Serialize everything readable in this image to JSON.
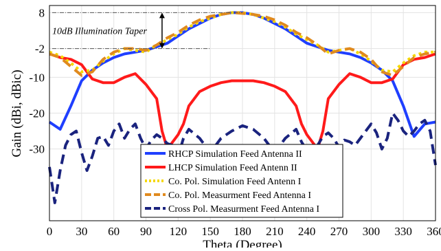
{
  "chart_data": {
    "type": "line",
    "xlabel": "Theta (Degree)",
    "ylabel": "Gain (dBi, dBic)",
    "xlim": [
      0,
      360
    ],
    "ylim": [
      -50,
      10
    ],
    "xticks": [
      0,
      30,
      60,
      90,
      120,
      150,
      180,
      210,
      240,
      270,
      300,
      330,
      360
    ],
    "yticks": [
      8,
      -2,
      -10,
      -20,
      -30
    ],
    "grid": true,
    "legend_position": "bottom-center",
    "annotation": {
      "text": "10dB Illumination Taper",
      "x_theta": 105,
      "y_top": 8,
      "y_bottom": -2
    },
    "series": [
      {
        "name": "RHCP Simulation Feed Antenna II",
        "color": "#1f3fff",
        "style": "solid",
        "x": [
          0,
          10,
          20,
          30,
          40,
          50,
          60,
          70,
          80,
          90,
          100,
          110,
          120,
          130,
          140,
          150,
          160,
          170,
          180,
          190,
          200,
          210,
          220,
          230,
          240,
          250,
          260,
          270,
          280,
          290,
          300,
          310,
          320,
          330,
          340,
          350,
          360
        ],
        "y": [
          -22.5,
          -24.5,
          -18,
          -11,
          -8,
          -6,
          -4.5,
          -3.5,
          -3,
          -2.5,
          -1.5,
          -0.5,
          1.5,
          3.5,
          5,
          6.5,
          7.5,
          8,
          8,
          7.5,
          6.5,
          5,
          3.5,
          1.5,
          -0.5,
          -1.5,
          -2.5,
          -3,
          -3.5,
          -4.5,
          -6,
          -8,
          -11,
          -18,
          -26.5,
          -23,
          -22.5
        ]
      },
      {
        "name": "LHCP Simulation Feed Antenn II",
        "color": "#ff1a1a",
        "style": "solid",
        "x": [
          0,
          10,
          20,
          30,
          40,
          50,
          60,
          70,
          80,
          90,
          100,
          105,
          110,
          115,
          120,
          125,
          130,
          140,
          150,
          160,
          170,
          180,
          190,
          200,
          210,
          220,
          230,
          235,
          240,
          245,
          250,
          255,
          260,
          270,
          280,
          290,
          300,
          310,
          320,
          330,
          340,
          350,
          360
        ],
        "y": [
          -3.5,
          -4.5,
          -5,
          -6.5,
          -10.5,
          -11.5,
          -11.5,
          -10,
          -9,
          -12,
          -16,
          -25,
          -30,
          -28,
          -26,
          -23,
          -18,
          -14,
          -12.5,
          -11.5,
          -11,
          -11,
          -11,
          -11.5,
          -12.5,
          -14,
          -18,
          -23,
          -26,
          -28,
          -30,
          -25,
          -16,
          -12,
          -9,
          -10,
          -11.5,
          -11.5,
          -10.5,
          -6.5,
          -5,
          -4.5,
          -3.5
        ]
      },
      {
        "name": "Co. Pol. Simulation Feed Antenn I",
        "color": "#f5d800",
        "style": "dotted",
        "x": [
          0,
          10,
          20,
          30,
          40,
          50,
          60,
          70,
          80,
          90,
          100,
          110,
          120,
          130,
          140,
          150,
          160,
          170,
          180,
          190,
          200,
          210,
          220,
          230,
          240,
          250,
          260,
          270,
          280,
          290,
          300,
          310,
          320,
          330,
          340,
          350,
          360
        ],
        "y": [
          -3,
          -4,
          -6,
          -8.5,
          -8,
          -5.5,
          -3.5,
          -2,
          -2.5,
          -3,
          -1,
          0.5,
          2,
          4,
          5.5,
          6.5,
          7.5,
          8,
          8,
          7.5,
          6.5,
          5.5,
          4,
          2,
          0.5,
          -1,
          -3,
          -2.5,
          -2,
          -3.5,
          -5.5,
          -8,
          -8.5,
          -6,
          -4,
          -3,
          -3
        ]
      },
      {
        "name": "Co. Pol. Measurment Feed Antenna I",
        "color": "#e08a1e",
        "style": "dashed",
        "x": [
          0,
          10,
          20,
          30,
          40,
          50,
          60,
          70,
          80,
          90,
          100,
          110,
          120,
          130,
          140,
          150,
          160,
          170,
          180,
          190,
          200,
          210,
          220,
          230,
          240,
          250,
          260,
          270,
          280,
          290,
          300,
          310,
          320,
          330,
          340,
          350,
          360
        ],
        "y": [
          -3.5,
          -4.5,
          -7,
          -9.5,
          -8.5,
          -5,
          -3,
          -2,
          -2,
          -2.5,
          -1,
          1,
          2.5,
          4.5,
          6,
          7,
          7.5,
          8,
          7.8,
          7.5,
          7,
          6,
          4.5,
          2.5,
          1,
          -1,
          -3.5,
          -2.5,
          -2,
          -3,
          -5,
          -8.5,
          -9.5,
          -7,
          -4.5,
          -3.5,
          -3
        ]
      },
      {
        "name": "Cross Pol. Measurment Feed Antenna I",
        "color": "#1a237e",
        "style": "dashed",
        "x": [
          0,
          5,
          10,
          15,
          20,
          25,
          30,
          35,
          40,
          45,
          50,
          55,
          60,
          65,
          70,
          75,
          80,
          85,
          90,
          95,
          100,
          105,
          110,
          115,
          120,
          125,
          130,
          140,
          150,
          160,
          170,
          180,
          190,
          200,
          210,
          220,
          230,
          235,
          240,
          245,
          250,
          255,
          260,
          265,
          270,
          275,
          280,
          285,
          290,
          295,
          300,
          305,
          310,
          315,
          320,
          325,
          330,
          335,
          340,
          345,
          350,
          355,
          360
        ],
        "y": [
          -35,
          -45,
          -36,
          -29,
          -26,
          -25,
          -31,
          -36,
          -32,
          -27,
          -26.5,
          -29,
          -25,
          -23,
          -27,
          -24.5,
          -23,
          -27,
          -30,
          -27.5,
          -26,
          -27,
          -28.5,
          -29,
          -32,
          -27,
          -24.5,
          -27,
          -31,
          -27,
          -25,
          -23.5,
          -24.5,
          -27,
          -31,
          -27,
          -24.5,
          -28,
          -30.5,
          -32,
          -29,
          -26.5,
          -25.5,
          -27,
          -29.5,
          -27.5,
          -28,
          -29,
          -27,
          -25,
          -23,
          -25.5,
          -30,
          -27,
          -20,
          -22,
          -25,
          -26.5,
          -25,
          -23,
          -22,
          -25,
          -34.5
        ]
      }
    ]
  }
}
